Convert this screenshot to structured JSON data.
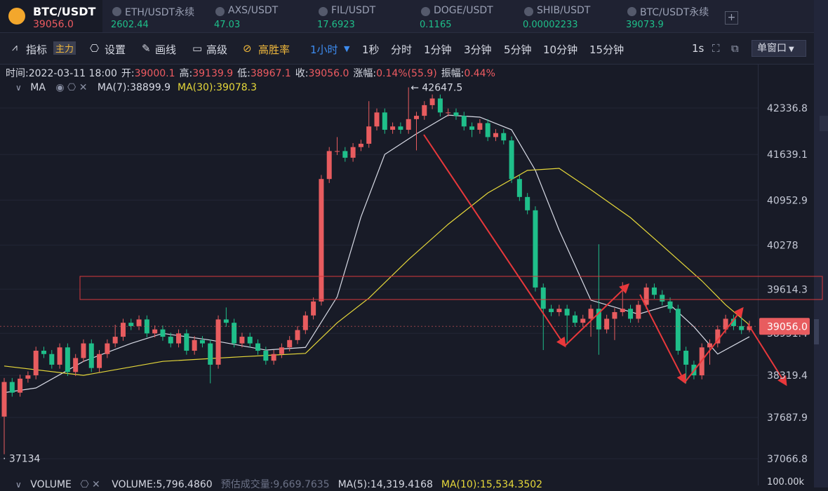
{
  "tabs": [
    {
      "symbol": "BTC/USDT",
      "price": "39056.0"
    },
    {
      "symbol": "ETH/USDT永续",
      "price": "2602.44"
    },
    {
      "symbol": "AXS/USDT",
      "price": "47.03"
    },
    {
      "symbol": "FIL/USDT",
      "price": "17.6923"
    },
    {
      "symbol": "DOGE/USDT",
      "price": "0.1165"
    },
    {
      "symbol": "SHIB/USDT",
      "price": "0.00002233"
    },
    {
      "symbol": "BTC/USDT永续",
      "price": "39073.9"
    }
  ],
  "toolbar": {
    "indicator": "指标",
    "main": "主力",
    "settings": "设置",
    "draw": "画线",
    "advanced": "高级",
    "win_rate": "高胜率",
    "interval": "1小时",
    "intervals": [
      "1秒",
      "分时",
      "1分钟",
      "3分钟",
      "5分钟",
      "10分钟",
      "15分钟"
    ],
    "speed": "1s",
    "window": "单窗口"
  },
  "info": [
    {
      "label": "时间:",
      "value": "2022-03-11 18:00"
    },
    {
      "label": "开:",
      "value": "39000.1"
    },
    {
      "label": "高:",
      "value": "39139.9"
    },
    {
      "label": "低:",
      "value": "38967.1"
    },
    {
      "label": "收:",
      "value": "39056.0"
    },
    {
      "label": "涨幅:",
      "value": "0.14%(55.9)"
    },
    {
      "label": "振幅:",
      "value": "0.44%"
    }
  ],
  "chart_data": {
    "type": "candlestick",
    "indicator": "MA",
    "ylim": [
      36792.8,
      42747.9
    ],
    "yticks": [
      42336.8,
      41639.1,
      40952.9,
      40278.0,
      39614.3,
      38951.4,
      38319.4,
      37687.9,
      37066.8
    ],
    "up_color": "#e85c5f",
    "down_color": "#1fbf8a",
    "current_price": {
      "value": 39056,
      "label": "39056.0"
    },
    "candles": [
      [
        37700,
        38280,
        37134,
        38220
      ],
      [
        38220,
        38280,
        38000,
        38060
      ],
      [
        38060,
        38330,
        38000,
        38270
      ],
      [
        38270,
        38380,
        38210,
        38320
      ],
      [
        38320,
        38750,
        38260,
        38690
      ],
      [
        38690,
        38750,
        38580,
        38640
      ],
      [
        38640,
        38700,
        38420,
        38480
      ],
      [
        38480,
        38800,
        38420,
        38740
      ],
      [
        38740,
        38800,
        38310,
        38370
      ],
      [
        38370,
        38640,
        38310,
        38580
      ],
      [
        38580,
        38860,
        38520,
        38800
      ],
      [
        38800,
        38860,
        38370,
        38430
      ],
      [
        38430,
        38700,
        38370,
        38640
      ],
      [
        38640,
        38860,
        38580,
        38800
      ],
      [
        38800,
        39080,
        38740,
        38900
      ],
      [
        38900,
        39170,
        38840,
        39110
      ],
      [
        39110,
        39170,
        39000,
        39060
      ],
      [
        39060,
        39220,
        39000,
        39160
      ],
      [
        39160,
        39220,
        38890,
        38950
      ],
      [
        38950,
        39070,
        38890,
        39010
      ],
      [
        39010,
        39070,
        38840,
        38900
      ],
      [
        38900,
        38960,
        38740,
        38800
      ],
      [
        38800,
        39010,
        38740,
        38950
      ],
      [
        38950,
        39010,
        38630,
        38690
      ],
      [
        38690,
        38910,
        38630,
        38850
      ],
      [
        38850,
        38910,
        38740,
        38800
      ],
      [
        38800,
        38860,
        38200,
        38480
      ],
      [
        38480,
        39220,
        38420,
        39160
      ],
      [
        39160,
        39340,
        39050,
        39110
      ],
      [
        39110,
        39170,
        38740,
        38800
      ],
      [
        38800,
        38960,
        38740,
        38900
      ],
      [
        38900,
        38960,
        38740,
        38800
      ],
      [
        38800,
        38860,
        38630,
        38690
      ],
      [
        38690,
        38750,
        38480,
        38540
      ],
      [
        38540,
        38700,
        38480,
        38640
      ],
      [
        38640,
        38800,
        38580,
        38740
      ],
      [
        38740,
        38910,
        38680,
        38850
      ],
      [
        38850,
        39060,
        38790,
        39000
      ],
      [
        39000,
        39280,
        38940,
        39220
      ],
      [
        39220,
        39490,
        39160,
        39430
      ],
      [
        39430,
        41330,
        39370,
        41270
      ],
      [
        41270,
        41750,
        41210,
        41690
      ],
      [
        41690,
        41900,
        41630,
        41690
      ],
      [
        41690,
        41750,
        41530,
        41590
      ],
      [
        41590,
        41810,
        41530,
        41750
      ],
      [
        41750,
        41860,
        41690,
        41800
      ],
      [
        41800,
        42440,
        41740,
        42060
      ],
      [
        42060,
        42330,
        42000,
        42270
      ],
      [
        42270,
        42330,
        41950,
        42010
      ],
      [
        42010,
        42120,
        41950,
        42060
      ],
      [
        42060,
        42120,
        41950,
        42010
      ],
      [
        42010,
        42647.5,
        41950,
        42170
      ],
      [
        42170,
        42280,
        41700,
        42220
      ],
      [
        42220,
        42440,
        42160,
        42380
      ],
      [
        42380,
        42540,
        42320,
        42480
      ],
      [
        42480,
        42540,
        42210,
        42270
      ],
      [
        42270,
        42330,
        42210,
        42270
      ],
      [
        42270,
        42330,
        42160,
        42220
      ],
      [
        42220,
        42280,
        42000,
        42060
      ],
      [
        42060,
        42120,
        41900,
        42010
      ],
      [
        42010,
        42170,
        41950,
        42110
      ],
      [
        42110,
        42170,
        41840,
        41900
      ],
      [
        41900,
        42020,
        41840,
        41960
      ],
      [
        41960,
        42020,
        41790,
        41850
      ],
      [
        41850,
        41910,
        41210,
        41270
      ],
      [
        41270,
        41330,
        40940,
        41000
      ],
      [
        41000,
        41060,
        40740,
        40800
      ],
      [
        40800,
        40860,
        39580,
        39640
      ],
      [
        39640,
        39700,
        38700,
        39320
      ],
      [
        39320,
        39380,
        39210,
        39270
      ],
      [
        39270,
        39380,
        39210,
        39320
      ],
      [
        39320,
        39380,
        38800,
        39220
      ],
      [
        39220,
        39280,
        39050,
        39110
      ],
      [
        39110,
        39230,
        39050,
        39170
      ],
      [
        39170,
        39380,
        38900,
        39320
      ],
      [
        39320,
        40290,
        38630,
        39010
      ],
      [
        39010,
        39230,
        38950,
        39170
      ],
      [
        39170,
        39330,
        38850,
        39270
      ],
      [
        39270,
        39720,
        39210,
        39320
      ],
      [
        39320,
        39380,
        39110,
        39170
      ],
      [
        39170,
        39440,
        39110,
        39380
      ],
      [
        39380,
        39700,
        39320,
        39640
      ],
      [
        39640,
        39700,
        39470,
        39530
      ],
      [
        39530,
        39600,
        39370,
        39430
      ],
      [
        39430,
        39490,
        39260,
        39320
      ],
      [
        39320,
        39380,
        38630,
        38690
      ],
      [
        38690,
        38750,
        38200,
        38480
      ],
      [
        38480,
        38540,
        38260,
        38320
      ],
      [
        38320,
        38800,
        38260,
        38740
      ],
      [
        38740,
        38860,
        38480,
        38800
      ],
      [
        38800,
        39070,
        38740,
        39010
      ],
      [
        39010,
        39230,
        38950,
        39170
      ],
      [
        39170,
        39230,
        39000,
        39060
      ],
      [
        39060,
        39330,
        38940,
        39000.1
      ],
      [
        39000.1,
        39139.9,
        38967.1,
        39056
      ]
    ],
    "ma": [
      {
        "name": "MA(7):",
        "value": 38899.9,
        "color": "#d8dbe6",
        "x": [
          0,
          4,
          10,
          16,
          20,
          26,
          33,
          38,
          42,
          45,
          48,
          52,
          56,
          60,
          64,
          67,
          70,
          74,
          80,
          84,
          87,
          90,
          94
        ],
        "values": [
          38060,
          38130,
          38530,
          38800,
          38950,
          38850,
          38700,
          38740,
          39500,
          40700,
          41640,
          41950,
          42230,
          42200,
          42010,
          41400,
          40500,
          39450,
          39240,
          39380,
          39050,
          38640,
          38899.9
        ]
      },
      {
        "name": "MA(30):",
        "value": 39078.3,
        "color": "#e6d83a",
        "x": [
          0,
          10,
          20,
          30,
          38,
          42,
          46,
          51,
          56,
          61,
          66,
          70,
          74,
          79,
          83,
          88,
          91,
          94
        ],
        "values": [
          38460,
          38320,
          38530,
          38600,
          38650,
          39110,
          39480,
          40060,
          40590,
          41060,
          41400,
          41430,
          41110,
          40690,
          40270,
          39740,
          39380,
          39078.3
        ]
      }
    ]
  },
  "volume": {
    "title": "VOLUME",
    "items": [
      {
        "label": "VOLUME:",
        "value": "5,796.4860"
      },
      {
        "label": "预估成交量:",
        "value": "9,669.7635"
      },
      {
        "label": "MA(5):",
        "value": "14,319.4168"
      },
      {
        "label": "MA(10):",
        "value": "15,534.3502"
      }
    ],
    "axis_label": "100.00k"
  }
}
